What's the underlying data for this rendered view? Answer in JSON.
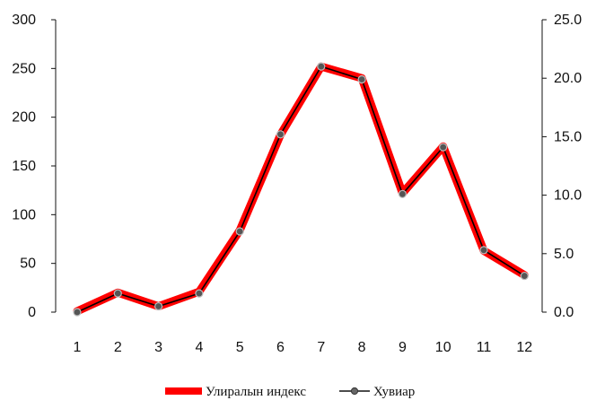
{
  "chart_data": {
    "type": "line",
    "x": [
      1,
      2,
      3,
      4,
      5,
      6,
      7,
      8,
      9,
      10,
      11,
      12
    ],
    "series": [
      {
        "name": "Улиралын индекс",
        "axis": "left",
        "color": "#ff0000",
        "values": [
          1,
          20,
          6,
          21,
          84,
          182,
          252,
          240,
          122,
          170,
          63,
          38
        ]
      },
      {
        "name": "Хувиар",
        "axis": "right",
        "color": "#000000",
        "values": [
          0.0,
          1.6,
          0.5,
          1.6,
          6.9,
          15.2,
          21.0,
          19.9,
          10.1,
          14.1,
          5.3,
          3.1
        ]
      }
    ],
    "ylim_left": [
      0,
      300
    ],
    "ylim_right": [
      0,
      25
    ],
    "yticks_left": [
      "0",
      "50",
      "100",
      "150",
      "200",
      "250",
      "300"
    ],
    "yticks_right": [
      "0.0",
      "5.0",
      "10.0",
      "15.0",
      "20.0",
      "25.0"
    ],
    "xticks": [
      "1",
      "2",
      "3",
      "4",
      "5",
      "6",
      "7",
      "8",
      "9",
      "10",
      "11",
      "12"
    ],
    "grid": false,
    "legend_position": "bottom"
  }
}
